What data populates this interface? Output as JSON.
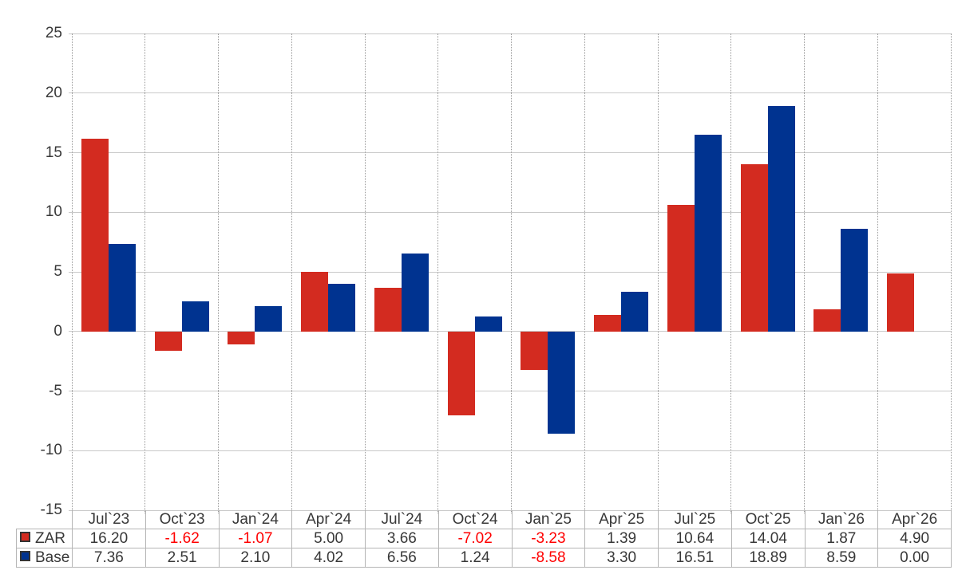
{
  "chart_data": {
    "type": "bar",
    "title": "",
    "categories": [
      "Jul`23",
      "Oct`23",
      "Jan`24",
      "Apr`24",
      "Jul`24",
      "Oct`24",
      "Jan`25",
      "Apr`25",
      "Jul`25",
      "Oct`25",
      "Jan`26",
      "Apr`26"
    ],
    "series": [
      {
        "name": "ZAR",
        "color": "#d32b20",
        "values": [
          "16.20",
          "-1.62",
          "-1.07",
          "5.00",
          "3.66",
          "-7.02",
          "-3.23",
          "1.39",
          "10.64",
          "14.04",
          "1.87",
          "4.90"
        ]
      },
      {
        "name": "Base",
        "color": "#003390",
        "values": [
          "7.36",
          "2.51",
          "2.10",
          "4.02",
          "6.56",
          "1.24",
          "-8.58",
          "3.30",
          "16.51",
          "18.89",
          "8.59",
          "0.00"
        ]
      }
    ],
    "ylim": [
      -15,
      25
    ],
    "yticks": [
      25,
      20,
      15,
      10,
      5,
      0,
      -5,
      -10,
      -15
    ],
    "grid": "horizontal-solid-vertical-dotted",
    "legend_position": "table-left",
    "colors": {
      "h_gridline": "#c9c9c9",
      "v_gridline": "#9a9a9a",
      "table_border": "#b5b5b5",
      "text": "#383838",
      "negative_value_text": "#ff0000",
      "marker_border": "#333333"
    }
  }
}
